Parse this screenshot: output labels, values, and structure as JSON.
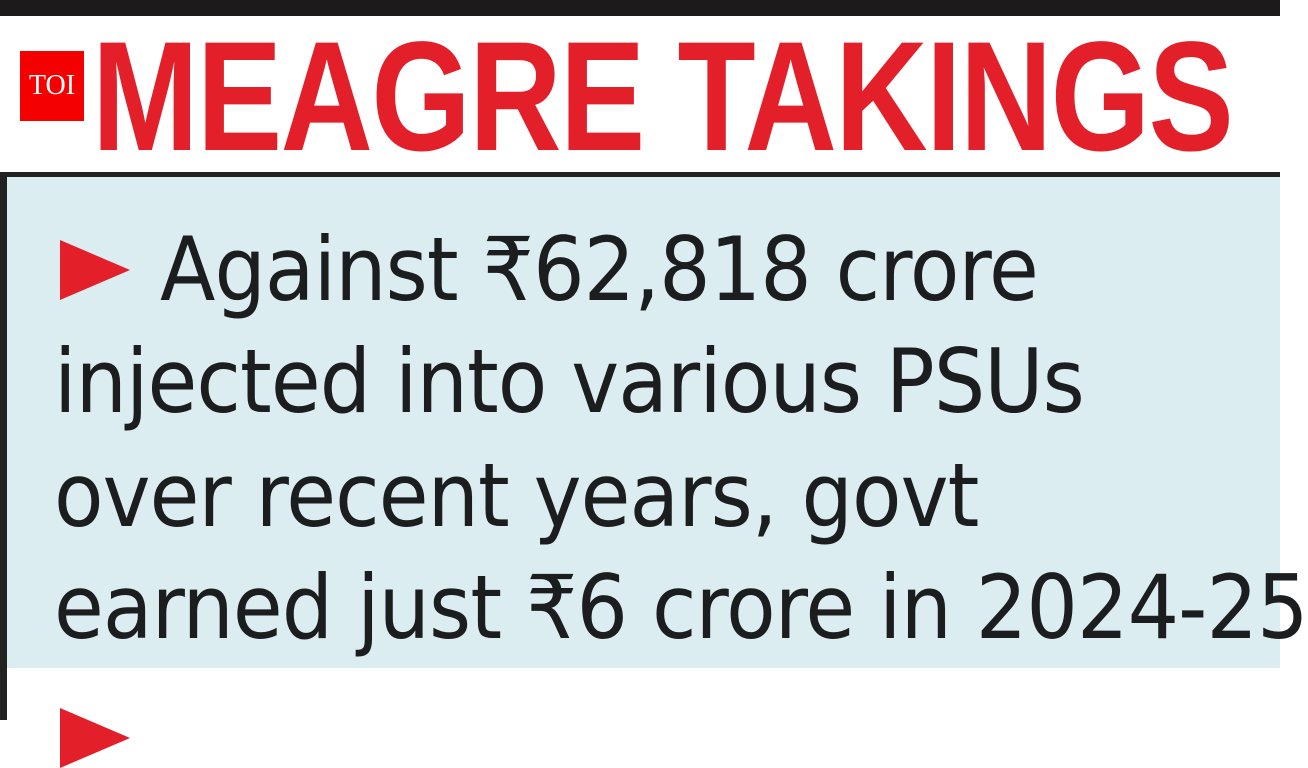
{
  "headline": "MEAGRE TAKINGS",
  "logo": "TOI",
  "colors": {
    "headline": "#e3202a",
    "panel": "#dcedf1",
    "logo_bg": "#f40000"
  },
  "bullet_icon": "red-arrowhead",
  "bullets": [
    {
      "lines": [
        "Against ₹62,818 crore",
        "injected into various PSUs",
        "over recent years, govt",
        "earned just ₹6 crore in 2024-25"
      ]
    }
  ]
}
